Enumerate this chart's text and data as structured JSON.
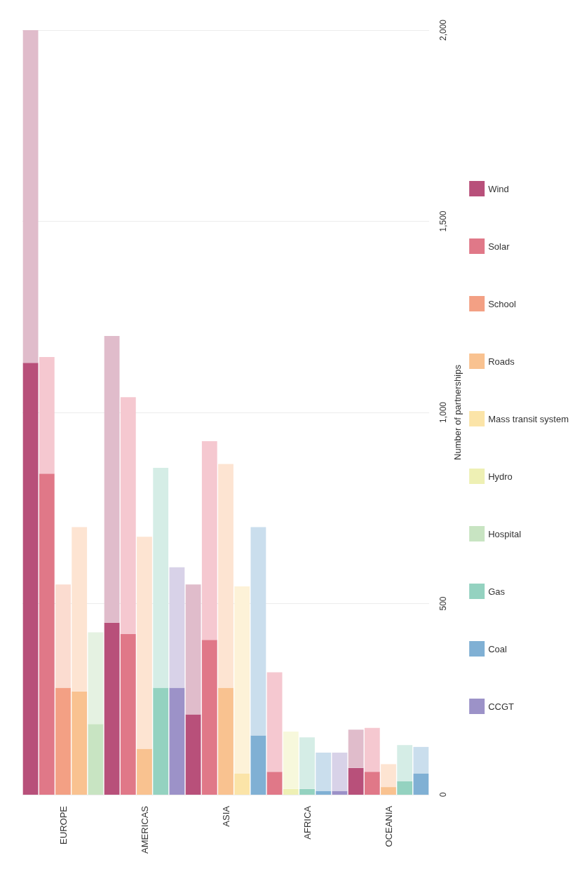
{
  "chart_data": {
    "type": "bar",
    "stacked": true,
    "ylabel": "Number of partnerships",
    "categories": [
      null,
      null,
      "EUROPE",
      null,
      null,
      null,
      null,
      "AMERICAS",
      null,
      null,
      null,
      null,
      "ASIA",
      null,
      null,
      null,
      null,
      "AFRICA",
      null,
      null,
      null,
      null,
      "OCEANIA",
      null,
      null
    ],
    "series": [
      {
        "name": "Wind",
        "color": "#b8507a",
        "values": [
          1130,
          null,
          null,
          null,
          null,
          450,
          null,
          null,
          null,
          null,
          210,
          null,
          null,
          null,
          null,
          null,
          null,
          null,
          null,
          null,
          70,
          null,
          null,
          null,
          null
        ]
      },
      {
        "name": "Solar",
        "color": "#e07888",
        "values": [
          null,
          840,
          null,
          null,
          null,
          null,
          420,
          null,
          null,
          null,
          null,
          405,
          null,
          null,
          null,
          60,
          null,
          null,
          null,
          null,
          null,
          60,
          null,
          null,
          null
        ]
      },
      {
        "name": "School",
        "color": "#f3a084",
        "values": [
          null,
          null,
          280,
          null,
          null,
          null,
          null,
          null,
          null,
          null,
          null,
          null,
          null,
          null,
          null,
          null,
          null,
          null,
          null,
          null,
          null,
          null,
          null,
          null,
          null
        ]
      },
      {
        "name": "Roads",
        "color": "#f9c290",
        "values": [
          null,
          null,
          null,
          270,
          null,
          null,
          null,
          120,
          null,
          null,
          null,
          null,
          280,
          null,
          null,
          null,
          null,
          null,
          null,
          null,
          null,
          null,
          20,
          null,
          null
        ]
      },
      {
        "name": "Mass transit system",
        "color": "#fbe4a8",
        "values": [
          null,
          null,
          null,
          null,
          null,
          null,
          null,
          null,
          null,
          null,
          null,
          null,
          null,
          55,
          null,
          null,
          null,
          null,
          null,
          null,
          null,
          null,
          null,
          null,
          null
        ]
      },
      {
        "name": "Hydro",
        "color": "#eef0b4",
        "values": [
          null,
          null,
          null,
          null,
          null,
          null,
          null,
          null,
          null,
          null,
          null,
          null,
          null,
          null,
          null,
          null,
          15,
          null,
          null,
          null,
          null,
          null,
          null,
          null,
          null
        ]
      },
      {
        "name": "Hospital",
        "color": "#c8e4c2",
        "values": [
          null,
          null,
          null,
          null,
          185,
          null,
          null,
          null,
          null,
          null,
          null,
          null,
          null,
          null,
          null,
          null,
          null,
          null,
          null,
          null,
          null,
          null,
          null,
          null,
          null
        ]
      },
      {
        "name": "Gas",
        "color": "#94d2c0",
        "values": [
          null,
          null,
          null,
          null,
          null,
          null,
          null,
          null,
          280,
          null,
          null,
          null,
          null,
          null,
          null,
          null,
          null,
          15,
          null,
          null,
          null,
          null,
          null,
          35,
          null
        ]
      },
      {
        "name": "Coal",
        "color": "#80b0d4",
        "values": [
          null,
          null,
          null,
          null,
          null,
          null,
          null,
          null,
          null,
          null,
          null,
          null,
          null,
          null,
          155,
          null,
          null,
          null,
          10,
          null,
          null,
          null,
          null,
          null,
          55
        ]
      },
      {
        "name": "CCGT",
        "color": "#9c92c8",
        "values": [
          null,
          null,
          null,
          null,
          null,
          null,
          null,
          null,
          null,
          280,
          null,
          null,
          null,
          null,
          null,
          null,
          null,
          null,
          null,
          10,
          null,
          null,
          null,
          null,
          null
        ]
      },
      {
        "color": "#e0bccb",
        "values": [
          870,
          null,
          null,
          null,
          null,
          750,
          null,
          null,
          null,
          null,
          340,
          null,
          null,
          null,
          null,
          null,
          null,
          null,
          null,
          null,
          100,
          null,
          null,
          null,
          null
        ]
      },
      {
        "color": "#f5c8d0",
        "values": [
          null,
          305,
          null,
          null,
          null,
          null,
          620,
          null,
          null,
          null,
          null,
          520,
          null,
          null,
          null,
          260,
          null,
          null,
          null,
          null,
          null,
          115,
          null,
          null,
          null
        ]
      },
      {
        "color": "#fbdcd0",
        "values": [
          null,
          null,
          270,
          null,
          null,
          null,
          null,
          null,
          null,
          null,
          null,
          null,
          null,
          null,
          null,
          null,
          null,
          null,
          null,
          null,
          null,
          null,
          null,
          null,
          null
        ]
      },
      {
        "color": "#fde4d2",
        "values": [
          null,
          null,
          null,
          430,
          null,
          null,
          null,
          555,
          null,
          null,
          null,
          null,
          585,
          null,
          null,
          null,
          null,
          null,
          null,
          null,
          null,
          null,
          60,
          null,
          null
        ]
      },
      {
        "color": "#fdf2d8",
        "values": [
          null,
          null,
          null,
          null,
          null,
          null,
          null,
          null,
          null,
          null,
          null,
          null,
          null,
          490,
          null,
          null,
          null,
          null,
          null,
          null,
          null,
          null,
          null,
          null,
          null
        ]
      },
      {
        "color": "#f7f8dc",
        "values": [
          null,
          null,
          null,
          null,
          null,
          null,
          null,
          null,
          null,
          null,
          null,
          null,
          null,
          null,
          null,
          null,
          150,
          null,
          null,
          null,
          null,
          null,
          null,
          null,
          null
        ]
      },
      {
        "color": "#e5f2e2",
        "values": [
          null,
          null,
          null,
          null,
          240,
          null,
          null,
          null,
          null,
          null,
          null,
          null,
          null,
          null,
          null,
          null,
          null,
          null,
          null,
          null,
          null,
          null,
          null,
          null,
          null
        ]
      },
      {
        "color": "#d5ede6",
        "values": [
          null,
          null,
          null,
          null,
          null,
          null,
          null,
          null,
          575,
          null,
          null,
          null,
          null,
          null,
          null,
          null,
          null,
          135,
          null,
          null,
          null,
          null,
          null,
          95,
          null
        ]
      },
      {
        "color": "#cadeed",
        "values": [
          null,
          null,
          null,
          null,
          null,
          null,
          null,
          null,
          null,
          null,
          null,
          null,
          null,
          null,
          545,
          null,
          null,
          null,
          100,
          null,
          null,
          null,
          null,
          null,
          70
        ]
      },
      {
        "color": "#d8d2e8",
        "values": [
          null,
          null,
          null,
          null,
          null,
          null,
          null,
          null,
          null,
          315,
          null,
          null,
          null,
          null,
          null,
          null,
          null,
          null,
          null,
          100,
          null,
          null,
          null,
          null,
          null
        ]
      }
    ],
    "ylim": [
      0,
      2000
    ],
    "yticks": [
      0,
      500,
      {
        "value": 1000,
        "label": "1,000"
      },
      {
        "value": 1500,
        "label": "1,500"
      },
      {
        "value": 2000,
        "label": "2,000"
      }
    ],
    "grid": "y",
    "legend": "right"
  }
}
